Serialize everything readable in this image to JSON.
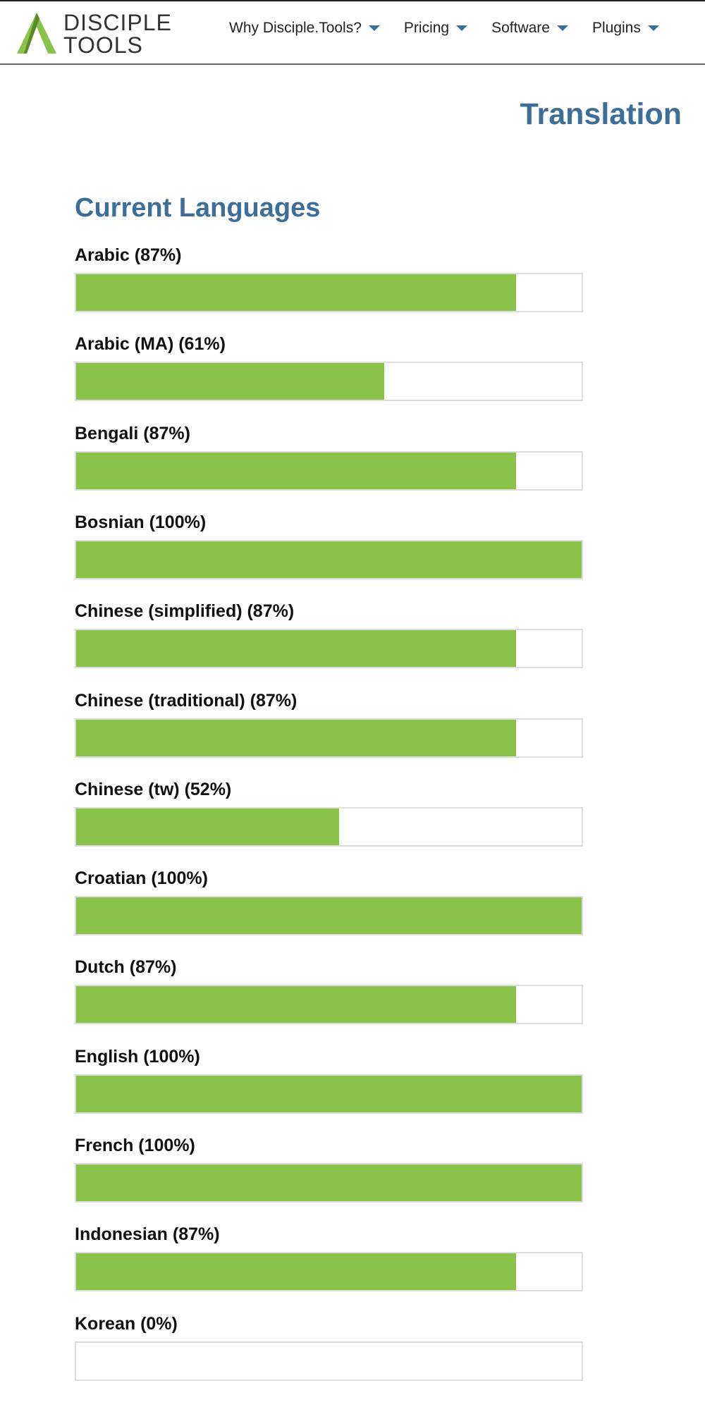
{
  "header": {
    "logo_top": "DISCIPLE",
    "logo_bottom": "TOOLS",
    "nav": [
      "Why Disciple.Tools?",
      "Pricing",
      "Software",
      "Plugins"
    ]
  },
  "title": "Translation",
  "section_heading": "Current Languages",
  "languages": [
    {
      "label": "Arabic (87%)",
      "progress": 87
    },
    {
      "label": "Arabic (MA) (61%)",
      "progress": 61
    },
    {
      "label": "Bengali (87%)",
      "progress": 87
    },
    {
      "label": "Bosnian (100%)",
      "progress": 100
    },
    {
      "label": "Chinese (simplified) (87%)",
      "progress": 87
    },
    {
      "label": "Chinese (traditional) (87%)",
      "progress": 87
    },
    {
      "label": "Chinese (tw) (52%)",
      "progress": 52
    },
    {
      "label": "Croatian (100%)",
      "progress": 100
    },
    {
      "label": "Dutch (87%)",
      "progress": 87
    },
    {
      "label": "English (100%)",
      "progress": 100
    },
    {
      "label": "French (100%)",
      "progress": 100
    },
    {
      "label": "Indonesian (87%)",
      "progress": 87
    },
    {
      "label": "Korean (0%)",
      "progress": 0
    }
  ]
}
